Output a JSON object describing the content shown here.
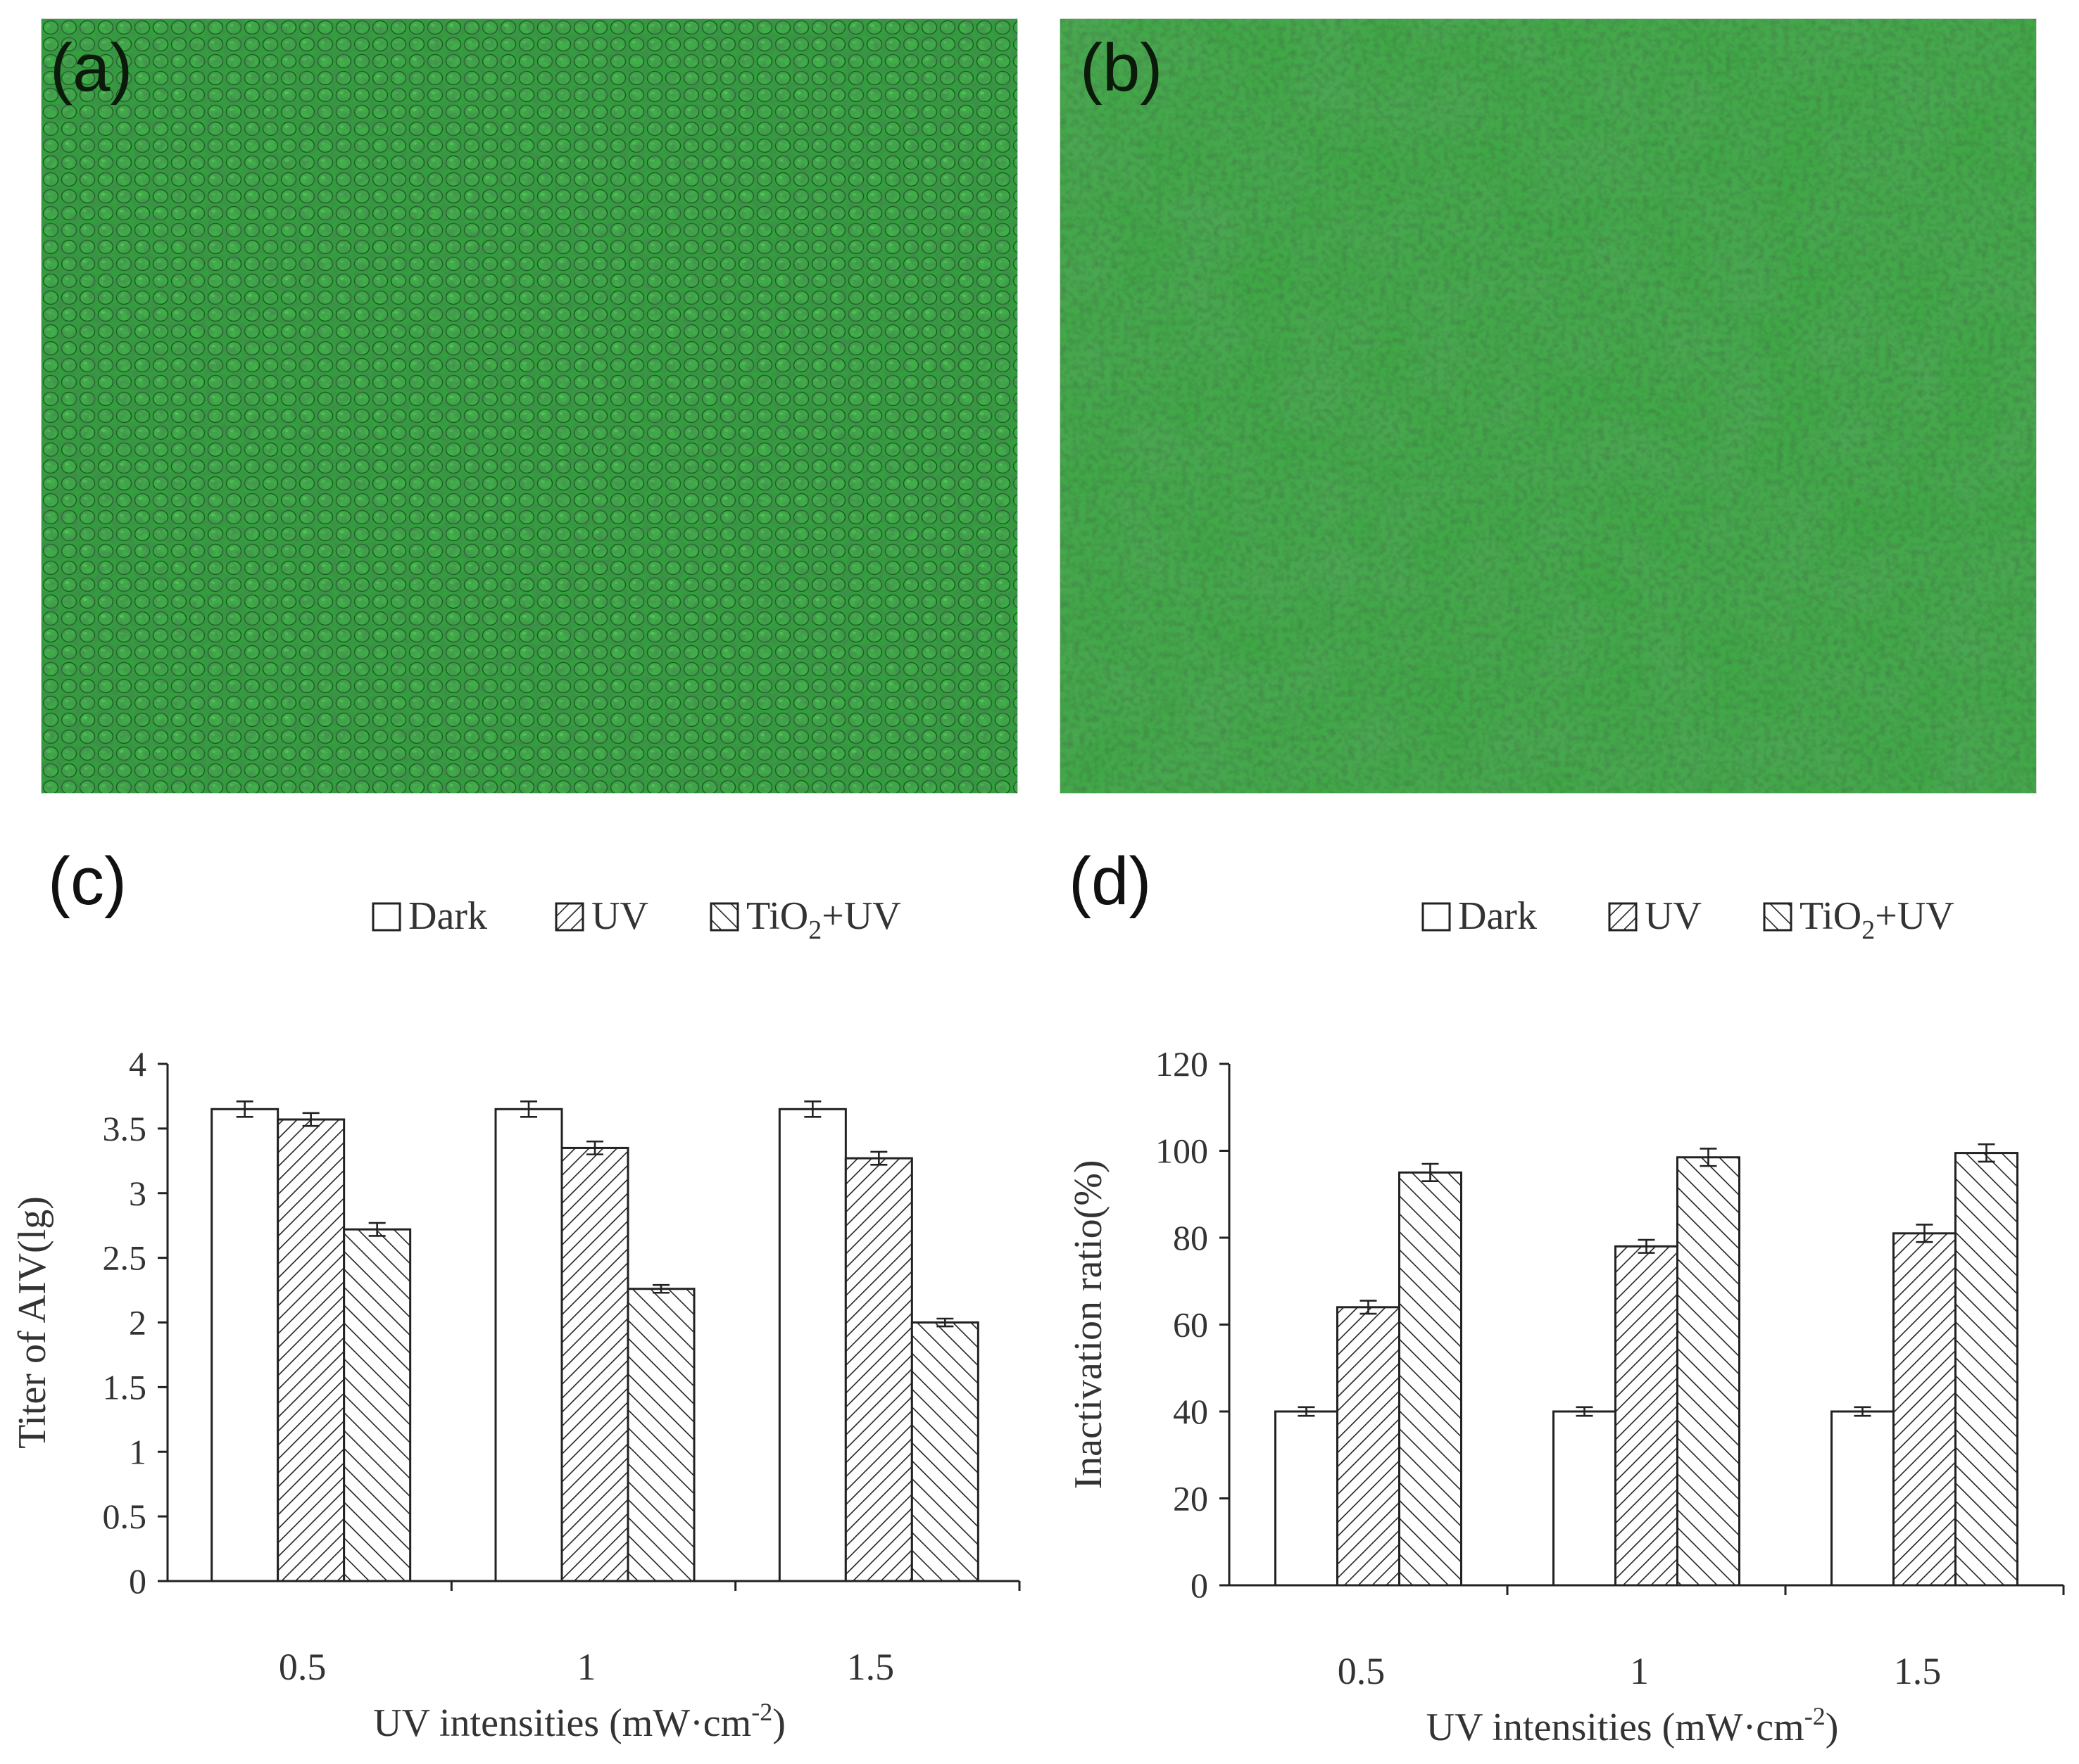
{
  "panels": {
    "a": {
      "letter": "(a)"
    },
    "b": {
      "letter": "(b)"
    },
    "c": {
      "letter": "(c)"
    },
    "d": {
      "letter": "(d)"
    }
  },
  "colors": {
    "micrograph_base": "#2f9a3a",
    "micrograph_dark": "#1d6e27",
    "cell_outline": "#17451c",
    "bar_stroke": "#222222"
  },
  "chart_data": [
    {
      "id": "c",
      "type": "bar",
      "categories": [
        "0.5",
        "1",
        "1.5"
      ],
      "series": [
        {
          "name": "Dark",
          "pattern": "none",
          "values": [
            3.65,
            3.65,
            3.65
          ],
          "errors": [
            0.06,
            0.06,
            0.06
          ]
        },
        {
          "name": "UV",
          "pattern": "diagonal-down",
          "values": [
            3.57,
            3.35,
            3.27
          ],
          "errors": [
            0.05,
            0.05,
            0.05
          ]
        },
        {
          "name": "TiO2+UV",
          "name_parts": [
            "TiO",
            "2",
            "+UV"
          ],
          "pattern": "diagonal-up",
          "values": [
            2.72,
            2.26,
            2.0
          ],
          "errors": [
            0.05,
            0.03,
            0.03
          ]
        }
      ],
      "xlabel": {
        "main": "UV intensities (mW·cm",
        "sup": "-2",
        "end": ")"
      },
      "ylabel": "Titer of AIV(lg)",
      "ylim": [
        0,
        4
      ],
      "yticks": [
        "0",
        "0.5",
        "1",
        "1.5",
        "2",
        "2.5",
        "3",
        "3.5",
        "4"
      ],
      "legend": "top",
      "grid": false
    },
    {
      "id": "d",
      "type": "bar",
      "categories": [
        "0.5",
        "1",
        "1.5"
      ],
      "series": [
        {
          "name": "Dark",
          "pattern": "none",
          "values": [
            40,
            40,
            40
          ],
          "errors": [
            1,
            1,
            1
          ]
        },
        {
          "name": "UV",
          "pattern": "diagonal-down",
          "values": [
            64,
            78,
            81
          ],
          "errors": [
            1.5,
            1.5,
            2
          ]
        },
        {
          "name": "TiO2+UV",
          "name_parts": [
            "TiO",
            "2",
            "+UV"
          ],
          "pattern": "diagonal-up",
          "values": [
            95,
            98.5,
            99.5
          ],
          "errors": [
            2,
            2,
            2
          ]
        }
      ],
      "xlabel": {
        "main": "UV intensities (mW·cm",
        "sup": "-2",
        "end": ")"
      },
      "ylabel": "Inactivation ratio(%)",
      "ylim": [
        0,
        120
      ],
      "yticks": [
        "0",
        "20",
        "40",
        "60",
        "80",
        "100",
        "120"
      ],
      "legend": "top",
      "grid": false
    }
  ]
}
